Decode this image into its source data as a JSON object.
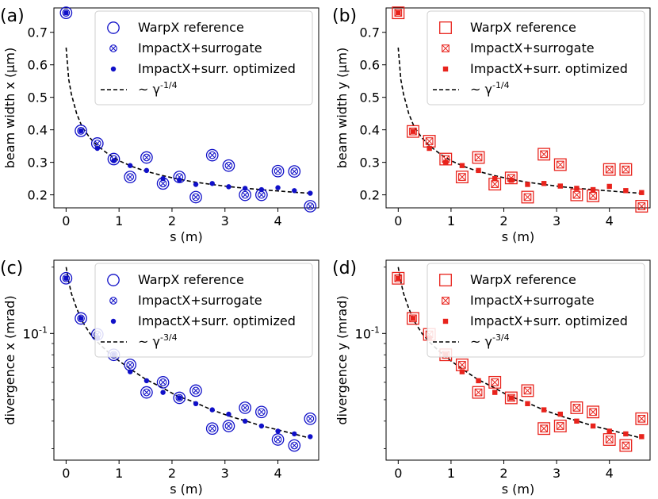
{
  "figure": {
    "colors": {
      "blue": "#1010c8",
      "red": "#e8231c",
      "black": "#000000"
    },
    "legend_labels": [
      "WarpX reference",
      "ImpactX+surrogate",
      "ImpactX+surr. optimized"
    ]
  },
  "chart_data": [
    {
      "id": "a",
      "panel_label": "(a)",
      "type": "scatter",
      "color": "blue",
      "yscale": "linear",
      "xlabel": "s (m)",
      "ylabel": "beam width x (µm)",
      "xlim": [
        -0.23,
        4.77
      ],
      "ylim": [
        0.16,
        0.775
      ],
      "xticks": [
        0,
        1,
        2,
        3,
        4
      ],
      "xtick_labels": [
        "0",
        "1",
        "2",
        "3",
        "4"
      ],
      "yticks": [
        0.2,
        0.3,
        0.4,
        0.5,
        0.6,
        0.7
      ],
      "ytick_labels": [
        "0.2",
        "0.3",
        "0.4",
        "0.5",
        "0.6",
        "0.7"
      ],
      "fit_label": "~ γ^{-1/4}",
      "fit_curve": {
        "x": [
          0,
          0.05,
          0.1,
          0.2,
          0.3,
          0.45,
          0.6,
          0.8,
          1.0,
          1.25,
          1.5,
          1.8,
          2.1,
          2.4,
          2.75,
          3.1,
          3.4,
          3.7,
          4.0,
          4.3,
          4.6
        ],
        "y": [
          0.653,
          0.555,
          0.51,
          0.45,
          0.41,
          0.375,
          0.35,
          0.325,
          0.305,
          0.287,
          0.273,
          0.26,
          0.249,
          0.24,
          0.232,
          0.225,
          0.22,
          0.216,
          0.212,
          0.208,
          0.205
        ]
      },
      "series": [
        {
          "name": "WarpX reference",
          "x": [
            0,
            0.28,
            0.59,
            0.9,
            1.21,
            1.52,
            1.83,
            2.14,
            2.45,
            2.76,
            3.07,
            3.38,
            3.69,
            4.0,
            4.31,
            4.61
          ],
          "y": [
            0.76,
            0.397,
            0.358,
            0.31,
            0.255,
            0.315,
            0.235,
            0.255,
            0.193,
            0.322,
            0.29,
            0.2,
            0.2,
            0.273,
            0.272,
            0.165
          ]
        },
        {
          "name": "ImpactX+surrogate",
          "x": [
            0,
            0.28,
            0.59,
            0.9,
            1.21,
            1.52,
            1.83,
            2.14,
            2.45,
            2.76,
            3.07,
            3.38,
            3.69,
            4.0,
            4.31,
            4.61
          ],
          "y": [
            0.76,
            0.397,
            0.358,
            0.31,
            0.255,
            0.315,
            0.235,
            0.255,
            0.193,
            0.322,
            0.29,
            0.2,
            0.2,
            0.273,
            0.272,
            0.165
          ]
        },
        {
          "name": "ImpactX+surr. optimized",
          "x": [
            0,
            0.28,
            0.59,
            0.9,
            1.21,
            1.52,
            1.83,
            2.14,
            2.45,
            2.76,
            3.07,
            3.38,
            3.69,
            4.0,
            4.31,
            4.61
          ],
          "y": [
            0.76,
            0.397,
            0.343,
            0.305,
            0.29,
            0.275,
            0.25,
            0.245,
            0.232,
            0.235,
            0.225,
            0.22,
            0.216,
            0.222,
            0.213,
            0.205
          ]
        }
      ]
    },
    {
      "id": "b",
      "panel_label": "(b)",
      "type": "scatter",
      "color": "red",
      "yscale": "linear",
      "xlabel": "s (m)",
      "ylabel": "beam width y (µm)",
      "xlim": [
        -0.23,
        4.77
      ],
      "ylim": [
        0.16,
        0.775
      ],
      "xticks": [
        0,
        1,
        2,
        3,
        4
      ],
      "xtick_labels": [
        "0",
        "1",
        "2",
        "3",
        "4"
      ],
      "yticks": [
        0.2,
        0.3,
        0.4,
        0.5,
        0.6,
        0.7
      ],
      "ytick_labels": [
        "0.2",
        "0.3",
        "0.4",
        "0.5",
        "0.6",
        "0.7"
      ],
      "fit_label": "~ γ^{-1/4}",
      "fit_curve": {
        "x": [
          0,
          0.05,
          0.1,
          0.2,
          0.3,
          0.45,
          0.6,
          0.8,
          1.0,
          1.25,
          1.5,
          1.8,
          2.1,
          2.4,
          2.75,
          3.1,
          3.4,
          3.7,
          4.0,
          4.3,
          4.6
        ],
        "y": [
          0.653,
          0.555,
          0.51,
          0.45,
          0.41,
          0.375,
          0.35,
          0.325,
          0.305,
          0.287,
          0.273,
          0.26,
          0.249,
          0.24,
          0.232,
          0.225,
          0.22,
          0.216,
          0.212,
          0.208,
          0.205
        ]
      },
      "series": [
        {
          "name": "WarpX reference",
          "x": [
            0,
            0.28,
            0.59,
            0.9,
            1.21,
            1.52,
            1.83,
            2.14,
            2.45,
            2.76,
            3.07,
            3.38,
            3.69,
            4.0,
            4.31,
            4.61
          ],
          "y": [
            0.76,
            0.395,
            0.365,
            0.31,
            0.255,
            0.315,
            0.233,
            0.252,
            0.193,
            0.325,
            0.293,
            0.2,
            0.197,
            0.278,
            0.278,
            0.165
          ]
        },
        {
          "name": "ImpactX+surrogate",
          "x": [
            0,
            0.28,
            0.59,
            0.9,
            1.21,
            1.52,
            1.83,
            2.14,
            2.45,
            2.76,
            3.07,
            3.38,
            3.69,
            4.0,
            4.31,
            4.61
          ],
          "y": [
            0.76,
            0.395,
            0.365,
            0.31,
            0.255,
            0.315,
            0.233,
            0.252,
            0.193,
            0.325,
            0.293,
            0.2,
            0.197,
            0.278,
            0.278,
            0.165
          ]
        },
        {
          "name": "ImpactX+surr. optimized",
          "x": [
            0,
            0.28,
            0.59,
            0.9,
            1.21,
            1.52,
            1.83,
            2.14,
            2.45,
            2.76,
            3.07,
            3.38,
            3.69,
            4.0,
            4.31,
            4.61
          ],
          "y": [
            0.76,
            0.395,
            0.343,
            0.3,
            0.29,
            0.275,
            0.25,
            0.245,
            0.232,
            0.235,
            0.227,
            0.22,
            0.216,
            0.226,
            0.213,
            0.207
          ]
        }
      ]
    },
    {
      "id": "c",
      "panel_label": "(c)",
      "type": "scatter",
      "color": "blue",
      "yscale": "log",
      "xlabel": "s (m)",
      "ylabel": "divergence x (mrad)",
      "xlim": [
        -0.23,
        4.77
      ],
      "ylim": [
        0.0266,
        0.215
      ],
      "xticks": [
        0,
        1,
        2,
        3,
        4
      ],
      "xtick_labels": [
        "0",
        "1",
        "2",
        "3",
        "4"
      ],
      "yticks": [
        0.1
      ],
      "ytick_labels": [
        "10^{-1}"
      ],
      "minor_yticks": [
        0.03,
        0.04,
        0.05,
        0.06,
        0.07,
        0.08,
        0.09,
        0.2
      ],
      "fit_label": "~ γ^{-3/4}",
      "fit_curve": {
        "x": [
          0,
          0.05,
          0.1,
          0.2,
          0.3,
          0.45,
          0.6,
          0.8,
          1.0,
          1.25,
          1.5,
          1.8,
          2.1,
          2.4,
          2.75,
          3.1,
          3.4,
          3.7,
          4.0,
          4.3,
          4.6
        ],
        "y": [
          0.2,
          0.172,
          0.152,
          0.13,
          0.114,
          0.1,
          0.091,
          0.082,
          0.075,
          0.068,
          0.062,
          0.057,
          0.052,
          0.049,
          0.045,
          0.042,
          0.04,
          0.038,
          0.0365,
          0.035,
          0.0335
        ]
      },
      "series": [
        {
          "name": "WarpX reference",
          "x": [
            0,
            0.28,
            0.59,
            0.9,
            1.21,
            1.52,
            1.83,
            2.14,
            2.45,
            2.76,
            3.07,
            3.38,
            3.69,
            4.0,
            4.31,
            4.61
          ],
          "y": [
            0.178,
            0.117,
            0.099,
            0.08,
            0.072,
            0.054,
            0.06,
            0.051,
            0.055,
            0.037,
            0.038,
            0.046,
            0.044,
            0.033,
            0.031,
            0.041
          ]
        },
        {
          "name": "ImpactX+surrogate",
          "x": [
            0,
            0.28,
            0.59,
            0.9,
            1.21,
            1.52,
            1.83,
            2.14,
            2.45,
            2.76,
            3.07,
            3.38,
            3.69,
            4.0,
            4.31,
            4.61
          ],
          "y": [
            0.178,
            0.117,
            0.099,
            0.08,
            0.072,
            0.054,
            0.06,
            0.051,
            0.055,
            0.037,
            0.038,
            0.046,
            0.044,
            0.033,
            0.031,
            0.041
          ]
        },
        {
          "name": "ImpactX+surr. optimized",
          "x": [
            0,
            0.28,
            0.59,
            0.9,
            1.21,
            1.52,
            1.83,
            2.14,
            2.45,
            2.76,
            3.07,
            3.38,
            3.69,
            4.0,
            4.31,
            4.61
          ],
          "y": [
            0.178,
            0.117,
            0.095,
            0.08,
            0.067,
            0.061,
            0.054,
            0.051,
            0.048,
            0.045,
            0.043,
            0.04,
            0.038,
            0.036,
            0.035,
            0.034
          ]
        }
      ]
    },
    {
      "id": "d",
      "panel_label": "(d)",
      "type": "scatter",
      "color": "red",
      "yscale": "log",
      "xlabel": "s (m)",
      "ylabel": "divergence y (mrad)",
      "xlim": [
        -0.23,
        4.77
      ],
      "ylim": [
        0.0266,
        0.215
      ],
      "xticks": [
        0,
        1,
        2,
        3,
        4
      ],
      "xtick_labels": [
        "0",
        "1",
        "2",
        "3",
        "4"
      ],
      "yticks": [
        0.1
      ],
      "ytick_labels": [
        "10^{-1}"
      ],
      "minor_yticks": [
        0.03,
        0.04,
        0.05,
        0.06,
        0.07,
        0.08,
        0.09,
        0.2
      ],
      "fit_label": "~ γ^{-3/4}",
      "fit_curve": {
        "x": [
          0,
          0.05,
          0.1,
          0.2,
          0.3,
          0.45,
          0.6,
          0.8,
          1.0,
          1.25,
          1.5,
          1.8,
          2.1,
          2.4,
          2.75,
          3.1,
          3.4,
          3.7,
          4.0,
          4.3,
          4.6
        ],
        "y": [
          0.2,
          0.172,
          0.152,
          0.13,
          0.114,
          0.1,
          0.091,
          0.082,
          0.075,
          0.068,
          0.062,
          0.057,
          0.052,
          0.049,
          0.045,
          0.042,
          0.04,
          0.038,
          0.0365,
          0.035,
          0.0335
        ]
      },
      "series": [
        {
          "name": "WarpX reference",
          "x": [
            0,
            0.28,
            0.59,
            0.9,
            1.21,
            1.52,
            1.83,
            2.14,
            2.45,
            2.76,
            3.07,
            3.38,
            3.69,
            4.0,
            4.31,
            4.61
          ],
          "y": [
            0.178,
            0.117,
            0.099,
            0.08,
            0.072,
            0.054,
            0.06,
            0.051,
            0.055,
            0.037,
            0.038,
            0.046,
            0.044,
            0.033,
            0.031,
            0.041
          ]
        },
        {
          "name": "ImpactX+surrogate",
          "x": [
            0,
            0.28,
            0.59,
            0.9,
            1.21,
            1.52,
            1.83,
            2.14,
            2.45,
            2.76,
            3.07,
            3.38,
            3.69,
            4.0,
            4.31,
            4.61
          ],
          "y": [
            0.178,
            0.117,
            0.099,
            0.08,
            0.072,
            0.054,
            0.06,
            0.051,
            0.055,
            0.037,
            0.038,
            0.046,
            0.044,
            0.033,
            0.031,
            0.041
          ]
        },
        {
          "name": "ImpactX+surr. optimized",
          "x": [
            0,
            0.28,
            0.59,
            0.9,
            1.21,
            1.52,
            1.83,
            2.14,
            2.45,
            2.76,
            3.07,
            3.38,
            3.69,
            4.0,
            4.31,
            4.61
          ],
          "y": [
            0.178,
            0.117,
            0.095,
            0.08,
            0.067,
            0.061,
            0.054,
            0.051,
            0.048,
            0.045,
            0.043,
            0.04,
            0.038,
            0.036,
            0.035,
            0.034
          ]
        }
      ]
    }
  ]
}
